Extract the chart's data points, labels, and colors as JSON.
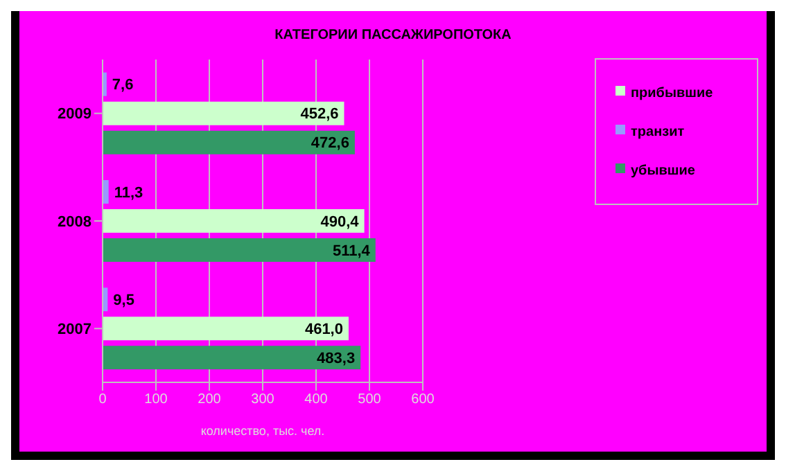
{
  "chart_data": {
    "type": "bar",
    "orientation": "horizontal",
    "title": "КАТЕГОРИИ ПАССАЖИРОПОТОКА",
    "xlabel": "количество, тыс. чел.",
    "categories": [
      "2009",
      "2008",
      "2007"
    ],
    "series": [
      {
        "name": "транзит",
        "color": "#9999ff",
        "values": [
          7.6,
          11.3,
          9.5
        ],
        "value_labels": [
          "7,6",
          "11,3",
          "9,5"
        ]
      },
      {
        "name": "прибывшие",
        "color": "#ccffcc",
        "values": [
          452.6,
          490.4,
          461.0
        ],
        "value_labels": [
          "452,6",
          "490,4",
          "461,0"
        ]
      },
      {
        "name": "убывшие",
        "color": "#339966",
        "values": [
          472.6,
          511.4,
          483.3
        ],
        "value_labels": [
          "472,6",
          "511,4",
          "483,3"
        ]
      }
    ],
    "xlim": [
      0,
      600
    ],
    "xticks": [
      0,
      100,
      200,
      300,
      400,
      500,
      600
    ],
    "grid": "x",
    "legend": "right"
  }
}
